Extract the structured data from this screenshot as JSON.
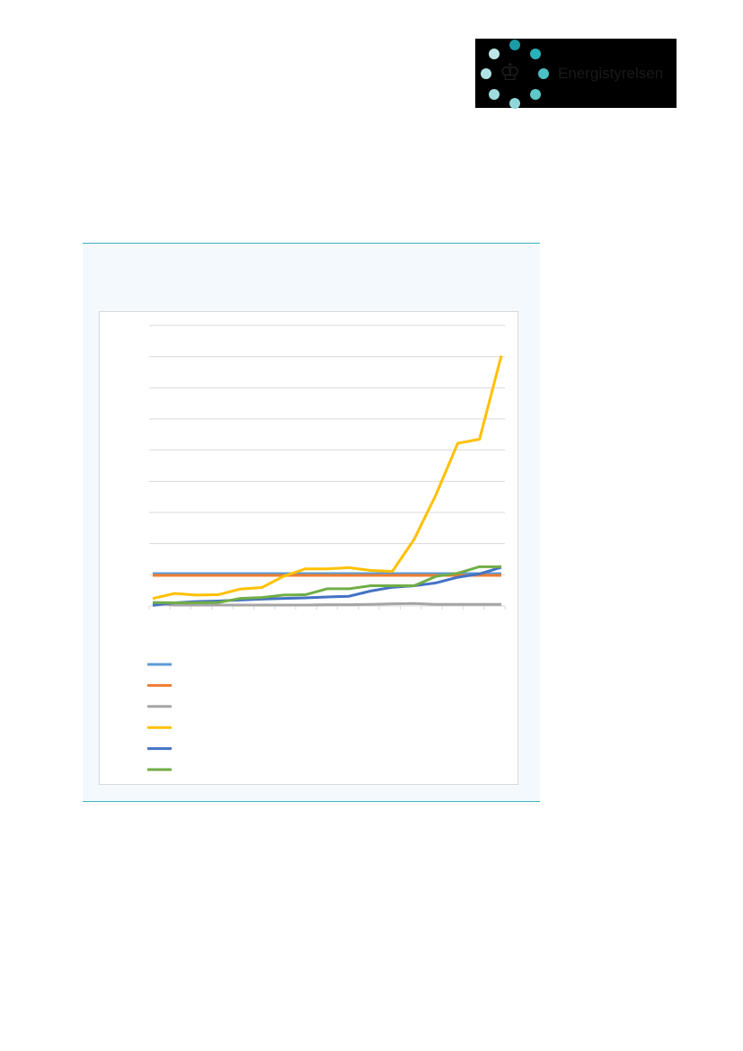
{
  "logo": {
    "text": "Energistyrelsen",
    "dot_colors": [
      "#1a9ba6",
      "#2ab0b8",
      "#4cc0c4",
      "#5ec8c8",
      "#8fd6d8",
      "#9fdcde",
      "#b0e2e4",
      "#bce6e8"
    ]
  },
  "chart_data": {
    "type": "line",
    "title": "",
    "xlabel": "",
    "ylabel": "",
    "grid": true,
    "legend": "bottom",
    "ylim": [
      0,
      9
    ],
    "series": [
      {
        "color": "#5b9bd5",
        "values": [
          1.04,
          1.04,
          1.04,
          1.04,
          1.04,
          1.04,
          1.04,
          1.04,
          1.04,
          1.04,
          1.04,
          1.04,
          1.04,
          1.04,
          1.04,
          1.04,
          1.04
        ]
      },
      {
        "color": "#ed7d31",
        "values": [
          0.98,
          0.98,
          0.98,
          0.98,
          0.98,
          0.98,
          0.98,
          0.98,
          0.98,
          0.98,
          0.98,
          0.98,
          0.98,
          0.98,
          0.98,
          0.98,
          0.98
        ]
      },
      {
        "color": "#a5a5a5",
        "values": [
          0.1,
          0.03,
          0.03,
          0.03,
          0.03,
          0.03,
          0.03,
          0.03,
          0.04,
          0.04,
          0.05,
          0.07,
          0.08,
          0.05,
          0.05,
          0.05,
          0.05
        ]
      },
      {
        "color": "#ffc000",
        "values": [
          0.24,
          0.4,
          0.35,
          0.36,
          0.54,
          0.59,
          0.95,
          1.19,
          1.19,
          1.23,
          1.14,
          1.11,
          2.14,
          3.57,
          5.22,
          5.35,
          8.03
        ]
      },
      {
        "color": "#4472c4",
        "values": [
          0.02,
          0.1,
          0.14,
          0.16,
          0.19,
          0.22,
          0.24,
          0.26,
          0.29,
          0.31,
          0.48,
          0.6,
          0.65,
          0.74,
          0.92,
          1.03,
          1.24
        ]
      },
      {
        "color": "#70ad47",
        "values": [
          0.11,
          0.1,
          0.1,
          0.11,
          0.24,
          0.27,
          0.35,
          0.36,
          0.55,
          0.55,
          0.65,
          0.65,
          0.65,
          0.95,
          1.05,
          1.26,
          1.26
        ]
      }
    ]
  }
}
